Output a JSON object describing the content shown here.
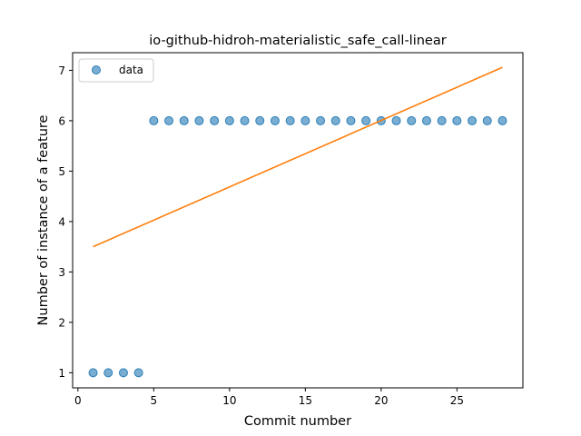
{
  "chart_data": {
    "type": "scatter",
    "title": "io-github-hidroh-materialistic_safe_call-linear",
    "xlabel": "Commit number",
    "ylabel": "Number of instance of a feature",
    "xlim": [
      -0.35,
      29.35
    ],
    "ylim": [
      0.7,
      7.35
    ],
    "xticks": [
      0,
      5,
      10,
      15,
      20,
      25
    ],
    "yticks": [
      1,
      2,
      3,
      4,
      5,
      6,
      7
    ],
    "legend": {
      "position": "top-left",
      "entries": [
        "data"
      ]
    },
    "series": [
      {
        "name": "data",
        "kind": "scatter",
        "color": "#1f77b4",
        "x": [
          1,
          2,
          3,
          4,
          5,
          6,
          7,
          8,
          9,
          10,
          11,
          12,
          13,
          14,
          15,
          16,
          17,
          18,
          19,
          20,
          21,
          22,
          23,
          24,
          25,
          26,
          27,
          28
        ],
        "y": [
          1,
          1,
          1,
          1,
          6,
          6,
          6,
          6,
          6,
          6,
          6,
          6,
          6,
          6,
          6,
          6,
          6,
          6,
          6,
          6,
          6,
          6,
          6,
          6,
          6,
          6,
          6,
          6
        ]
      },
      {
        "kind": "line",
        "color": "#ff7f0e",
        "x": [
          1,
          28
        ],
        "y": [
          3.5,
          7.06
        ]
      }
    ]
  }
}
